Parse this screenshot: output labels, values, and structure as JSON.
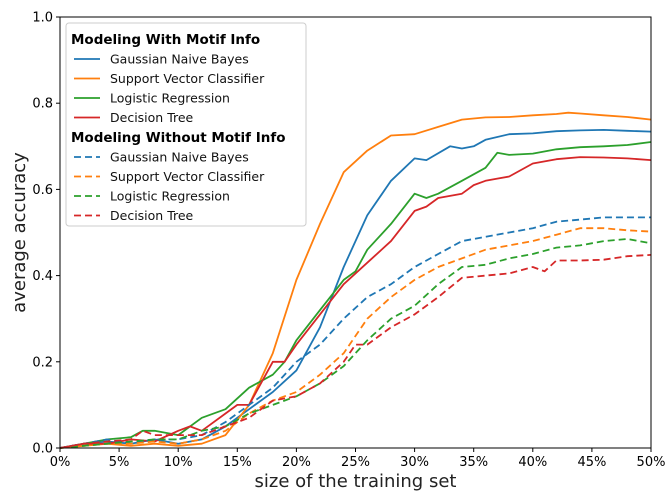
{
  "chart_data": {
    "type": "line",
    "title": "",
    "xlabel": "size of the training set",
    "ylabel": "average accuracy",
    "xlim": [
      0,
      50
    ],
    "ylim": [
      0,
      1.0
    ],
    "xticks": [
      0,
      5,
      10,
      15,
      20,
      25,
      30,
      35,
      40,
      45,
      50
    ],
    "xtick_labels": [
      "0%",
      "5%",
      "10%",
      "15%",
      "20%",
      "25%",
      "30%",
      "35%",
      "40%",
      "45%",
      "50%"
    ],
    "yticks": [
      0.0,
      0.2,
      0.4,
      0.6,
      0.8,
      1.0
    ],
    "ytick_labels": [
      "0.0",
      "0.2",
      "0.4",
      "0.6",
      "0.8",
      "1.0"
    ],
    "grid": false,
    "legend_position": "top-left",
    "groups": [
      {
        "title": "Modeling With Motif Info",
        "dash": "solid",
        "series": [
          {
            "name": "Gaussian Naive Bayes",
            "color": "#1f77b4",
            "x": [
              0,
              2,
              4,
              6,
              8,
              10,
              12,
              14,
              16,
              18,
              20,
              22,
              24,
              26,
              28,
              30,
              31,
              33,
              34,
              35,
              36,
              38,
              40,
              42,
              44,
              46,
              48,
              50
            ],
            "y": [
              0.0,
              0.01,
              0.015,
              0.01,
              0.02,
              0.01,
              0.02,
              0.05,
              0.09,
              0.13,
              0.18,
              0.28,
              0.42,
              0.54,
              0.62,
              0.672,
              0.668,
              0.7,
              0.695,
              0.7,
              0.715,
              0.728,
              0.73,
              0.735,
              0.737,
              0.738,
              0.736,
              0.734
            ]
          },
          {
            "name": "Support Vector Classifier",
            "color": "#ff7f0e",
            "x": [
              0,
              2,
              4,
              6,
              8,
              10,
              12,
              14,
              16,
              18,
              20,
              22,
              24,
              26,
              28,
              30,
              32,
              34,
              36,
              38,
              40,
              42,
              43,
              44,
              46,
              48,
              50
            ],
            "y": [
              0.0,
              0.005,
              0.01,
              0.005,
              0.01,
              0.005,
              0.01,
              0.03,
              0.1,
              0.22,
              0.39,
              0.52,
              0.64,
              0.69,
              0.725,
              0.728,
              0.745,
              0.762,
              0.767,
              0.768,
              0.772,
              0.775,
              0.778,
              0.776,
              0.772,
              0.768,
              0.762
            ]
          },
          {
            "name": "Logistic Regression",
            "color": "#2ca02c",
            "x": [
              0,
              2,
              4,
              6,
              7,
              8,
              10,
              12,
              14,
              16,
              18,
              19,
              20,
              22,
              24,
              25,
              26,
              28,
              30,
              31,
              32,
              34,
              36,
              37,
              38,
              40,
              42,
              44,
              46,
              48,
              50
            ],
            "y": [
              0.0,
              0.01,
              0.02,
              0.025,
              0.04,
              0.04,
              0.03,
              0.07,
              0.09,
              0.14,
              0.17,
              0.2,
              0.25,
              0.32,
              0.39,
              0.41,
              0.46,
              0.52,
              0.59,
              0.58,
              0.59,
              0.62,
              0.65,
              0.685,
              0.68,
              0.683,
              0.693,
              0.698,
              0.7,
              0.703,
              0.71
            ]
          },
          {
            "name": "Decision Tree",
            "color": "#d62728",
            "x": [
              0,
              2,
              4,
              6,
              8,
              10,
              11,
              12,
              14,
              15,
              16,
              18,
              19,
              20,
              22,
              24,
              26,
              28,
              30,
              31,
              32,
              34,
              35,
              36,
              37,
              38,
              40,
              42,
              44,
              46,
              48,
              50
            ],
            "y": [
              0.0,
              0.01,
              0.01,
              0.02,
              0.015,
              0.04,
              0.05,
              0.04,
              0.08,
              0.1,
              0.1,
              0.2,
              0.2,
              0.24,
              0.31,
              0.38,
              0.43,
              0.48,
              0.55,
              0.56,
              0.58,
              0.59,
              0.61,
              0.62,
              0.625,
              0.63,
              0.66,
              0.67,
              0.675,
              0.674,
              0.672,
              0.668
            ]
          }
        ]
      },
      {
        "title": "Modeling Without Motif Info",
        "dash": "dashed",
        "series": [
          {
            "name": "Gaussian Naive Bayes",
            "color": "#1f77b4",
            "x": [
              0,
              2,
              4,
              6,
              8,
              10,
              12,
              14,
              16,
              18,
              20,
              22,
              24,
              26,
              28,
              30,
              32,
              34,
              36,
              38,
              40,
              42,
              44,
              46,
              48,
              50
            ],
            "y": [
              0.0,
              0.01,
              0.02,
              0.01,
              0.02,
              0.02,
              0.03,
              0.06,
              0.1,
              0.14,
              0.2,
              0.24,
              0.3,
              0.35,
              0.38,
              0.42,
              0.45,
              0.48,
              0.49,
              0.5,
              0.51,
              0.525,
              0.53,
              0.535,
              0.535,
              0.535
            ]
          },
          {
            "name": "Support Vector Classifier",
            "color": "#ff7f0e",
            "x": [
              0,
              2,
              4,
              6,
              8,
              10,
              12,
              14,
              16,
              18,
              20,
              22,
              24,
              26,
              28,
              30,
              32,
              34,
              36,
              38,
              40,
              42,
              44,
              46,
              48,
              50
            ],
            "y": [
              0.0,
              0.005,
              0.01,
              0.01,
              0.015,
              0.01,
              0.02,
              0.04,
              0.08,
              0.11,
              0.13,
              0.17,
              0.22,
              0.3,
              0.35,
              0.39,
              0.42,
              0.44,
              0.46,
              0.47,
              0.48,
              0.495,
              0.51,
              0.51,
              0.505,
              0.502
            ]
          },
          {
            "name": "Logistic Regression",
            "color": "#2ca02c",
            "x": [
              0,
              2,
              4,
              6,
              8,
              10,
              12,
              14,
              16,
              18,
              20,
              22,
              24,
              26,
              28,
              30,
              32,
              34,
              36,
              38,
              40,
              42,
              44,
              46,
              48,
              50
            ],
            "y": [
              0.0,
              0.005,
              0.01,
              0.015,
              0.02,
              0.02,
              0.04,
              0.05,
              0.08,
              0.1,
              0.12,
              0.15,
              0.19,
              0.25,
              0.3,
              0.33,
              0.38,
              0.42,
              0.425,
              0.44,
              0.45,
              0.465,
              0.47,
              0.48,
              0.485,
              0.475
            ]
          },
          {
            "name": "Decision Tree",
            "color": "#d62728",
            "x": [
              0,
              2,
              4,
              6,
              7,
              8,
              10,
              12,
              14,
              16,
              18,
              20,
              22,
              24,
              25,
              26,
              28,
              30,
              32,
              34,
              36,
              38,
              40,
              41,
              42,
              44,
              46,
              48,
              50
            ],
            "y": [
              0.0,
              0.01,
              0.015,
              0.02,
              0.04,
              0.03,
              0.03,
              0.03,
              0.05,
              0.07,
              0.11,
              0.12,
              0.15,
              0.2,
              0.24,
              0.24,
              0.28,
              0.31,
              0.35,
              0.395,
              0.4,
              0.405,
              0.42,
              0.41,
              0.435,
              0.435,
              0.437,
              0.445,
              0.448
            ]
          }
        ]
      }
    ]
  }
}
